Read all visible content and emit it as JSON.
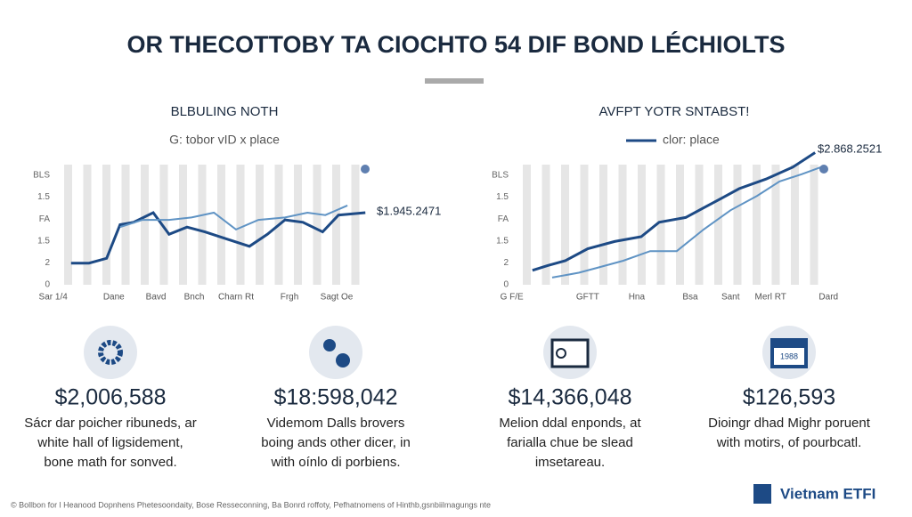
{
  "title": "OR THECOTTOBY TA CIOCHTO 54 DIF BOND LÉCHIOLTS",
  "chart_data": [
    {
      "type": "line",
      "title": "BLBULING NOTH",
      "subtitle": "G: tobor vID x place",
      "annotation": "$1.945.2471",
      "xlim": [
        -5,
        105
      ],
      "ylim": [
        0,
        5
      ],
      "xticks": [
        {
          "value": -4.5,
          "label": "Sar 1/4"
        },
        {
          "value": 15.8,
          "label": "Dane"
        },
        {
          "value": 29.9,
          "label": "Bavd"
        },
        {
          "value": 42.7,
          "label": "Bnch"
        },
        {
          "value": 56.7,
          "label": "Charn Rt"
        },
        {
          "value": 74.6,
          "label": "Frgh"
        },
        {
          "value": 90.4,
          "label": "Sagt Oe"
        }
      ],
      "y_axis_labels": [
        "BLS",
        "1.5",
        "FA",
        "1.5",
        "2",
        "0"
      ],
      "series": [
        {
          "color": "#1d4a85",
          "x": [
            1.5,
            7.5,
            13.4,
            17.9,
            22.4,
            29,
            34.3,
            40.3,
            46.3,
            53.7,
            61.2,
            67.2,
            73.1,
            79.1,
            85.7,
            91,
            100
          ],
          "values": [
            0.9,
            0.9,
            1.1,
            2.5,
            2.6,
            3,
            2.1,
            2.4,
            2.2,
            1.9,
            1.6,
            2.1,
            2.7,
            2.6,
            2.2,
            2.9,
            3
          ]
        },
        {
          "color": "#5f93c4",
          "x": [
            17.9,
            25.4,
            34.3,
            41.8,
            49.3,
            56.7,
            64.2,
            73.1,
            80.6,
            86.6,
            94
          ],
          "values": [
            2.4,
            2.7,
            2.7,
            2.8,
            3,
            2.3,
            2.7,
            2.8,
            3,
            2.9,
            3.3
          ]
        }
      ]
    },
    {
      "type": "line",
      "title": "AVFPT YOTR SNTABST!",
      "legend": "clor: place",
      "annotation": "$2.868.2521",
      "xlim": [
        -5,
        105
      ],
      "ylim": [
        0,
        5
      ],
      "xticks": [
        {
          "value": -4.5,
          "label": "G F/E"
        },
        {
          "value": 20.9,
          "label": "GFTT"
        },
        {
          "value": 37.3,
          "label": "Hna"
        },
        {
          "value": 55.2,
          "label": "Bsa"
        },
        {
          "value": 68.7,
          "label": "Sant"
        },
        {
          "value": 82.1,
          "label": "Merl RT"
        },
        {
          "value": 101.5,
          "label": "Dard"
        }
      ],
      "y_axis_labels": [
        "BLS",
        "1.5",
        "FA",
        "1.5",
        "2",
        "0"
      ],
      "series": [
        {
          "color": "#1d4a85",
          "x": [
            2.4,
            7.5,
            13.4,
            20.9,
            29.9,
            38.8,
            44.8,
            53.7,
            59.7,
            65.7,
            71.6,
            80.6,
            89.6,
            97
          ],
          "values": [
            0.6,
            0.8,
            1,
            1.5,
            1.8,
            2,
            2.6,
            2.8,
            3.2,
            3.6,
            4,
            4.4,
            4.9,
            5.5
          ]
        },
        {
          "color": "#5f93c4",
          "x": [
            9,
            17.9,
            23.9,
            32.8,
            41.8,
            50.7,
            59.7,
            68.7,
            77.6,
            85.1,
            92.5,
            99.1
          ],
          "values": [
            0.3,
            0.5,
            0.7,
            1,
            1.4,
            1.4,
            2.3,
            3.1,
            3.7,
            4.3,
            4.6,
            4.9
          ]
        }
      ]
    }
  ],
  "stats": [
    {
      "value": "$2,006,588",
      "desc": [
        "Sácr dar poicher ribuneds, ar",
        "white hall of ligsidement,",
        "bone math for sonved."
      ]
    },
    {
      "value": "$18:598,042",
      "desc": [
        "Videmom Dalls brovers",
        "boing ands other dicer, in",
        "with oínlo di porbiens."
      ]
    },
    {
      "value": "$14,366,048",
      "desc": [
        "Melion ddal enponds, at",
        "farialla chue be slead",
        "imsetareau."
      ]
    },
    {
      "value": "$126,593",
      "desc": [
        "Dioingr dhad Mighr poruent",
        "with motirs, of pourbcatl."
      ]
    }
  ],
  "icon_label": "1988",
  "footer": "© Bollbon for l Heanood Dopnhens Phetesoondaity, Bose Resseconning, Ba Bonrd roffoty, Pefhatnomens of Hinthb,gsnbiilmagungs nte",
  "brand": "Vietnam ETFI"
}
